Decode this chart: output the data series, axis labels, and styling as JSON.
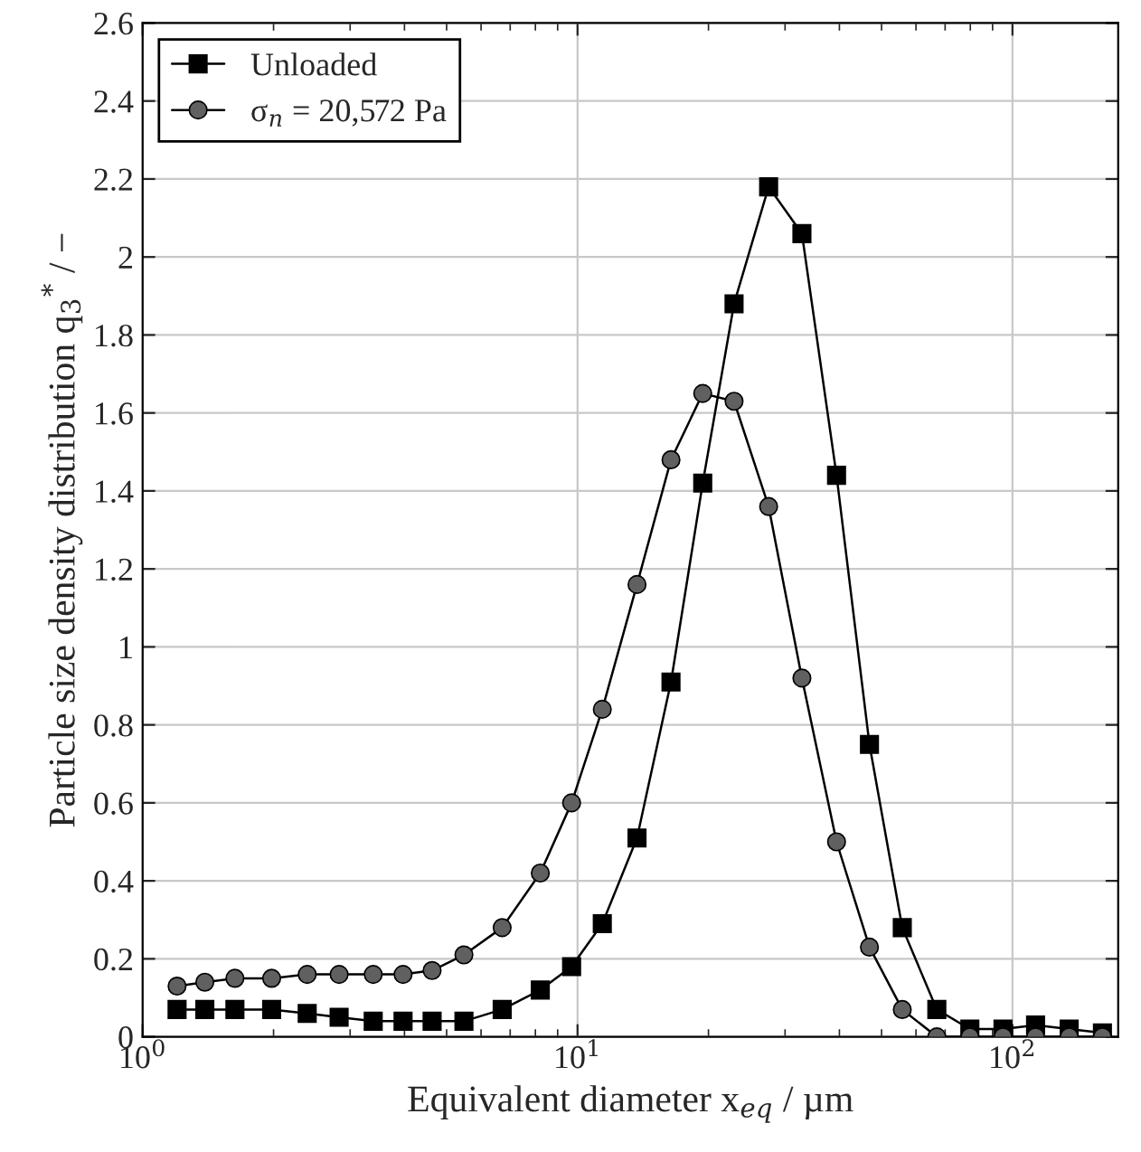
{
  "chart_data": {
    "type": "line",
    "xlabel": "Equivalent diameter x$_{eq}$ / µm",
    "ylabel": "Particle size density distribution q$_{3}$$^{*}$ / −",
    "x": [
      1.2,
      1.39,
      1.63,
      1.98,
      2.39,
      2.83,
      3.39,
      3.97,
      4.63,
      5.48,
      6.71,
      8.21,
      9.69,
      11.4,
      13.7,
      16.4,
      19.4,
      22.9,
      27.5,
      32.8,
      39.4,
      46.9,
      55.8,
      67.0,
      79.8,
      95.1,
      113,
      135,
      161
    ],
    "series": [
      {
        "name": "Unloaded",
        "color": "#000000",
        "marker": "square",
        "values": [
          0.07,
          0.07,
          0.07,
          0.07,
          0.06,
          0.05,
          0.04,
          0.04,
          0.04,
          0.04,
          0.07,
          0.12,
          0.18,
          0.29,
          0.51,
          0.91,
          1.42,
          1.88,
          2.18,
          2.06,
          1.44,
          0.75,
          0.28,
          0.07,
          0.02,
          0.02,
          0.03,
          0.02,
          0.01
        ]
      },
      {
        "name": "σ$_{n}$ = 20,572 Pa",
        "color": "#606060",
        "marker": "circle",
        "values": [
          0.13,
          0.14,
          0.15,
          0.15,
          0.16,
          0.16,
          0.16,
          0.16,
          0.17,
          0.21,
          0.28,
          0.42,
          0.6,
          0.84,
          1.16,
          1.48,
          1.65,
          1.63,
          1.36,
          0.92,
          0.5,
          0.23,
          0.07,
          0,
          0,
          0,
          0,
          0,
          0
        ]
      }
    ],
    "log": "x",
    "xlim": [
      1,
      175
    ],
    "xticks": [
      {
        "value": 1,
        "label": "10$^{0}$"
      },
      {
        "value": 10,
        "label": "10$^{1}$"
      },
      {
        "value": 100,
        "label": "10$^{2}$"
      }
    ],
    "ylim": [
      0,
      2.6
    ],
    "yticks": [
      0,
      0.2,
      0.4,
      0.6,
      0.8,
      1,
      1.2,
      1.4,
      1.6,
      1.8,
      2,
      2.2,
      2.4,
      2.6
    ],
    "grid": true,
    "legend": "top left",
    "line_style": "solid"
  }
}
